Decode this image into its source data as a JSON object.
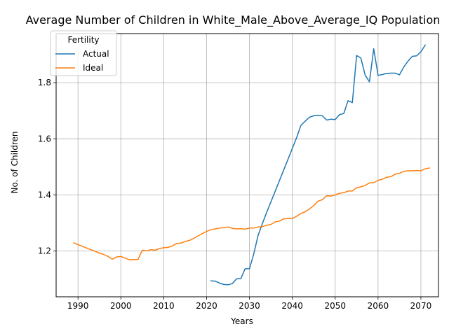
{
  "chart_data": {
    "type": "line",
    "title": "Average Number of Children in White_Male_Above_Average_IQ Population",
    "xlabel": "Years",
    "ylabel": "No. of Children",
    "xlim": [
      1984.9,
      2074.1
    ],
    "ylim": [
      1.037,
      1.975
    ],
    "grid": true,
    "legend_title": "Fertility",
    "legend_position": "top-left",
    "x_ticks": [
      1990,
      2000,
      2010,
      2020,
      2030,
      2040,
      2050,
      2060,
      2070
    ],
    "x_tick_labels": [
      "1990",
      "2000",
      "2010",
      "2020",
      "2030",
      "2040",
      "2050",
      "2060",
      "2070"
    ],
    "y_ticks": [
      1.2,
      1.4,
      1.6,
      1.8
    ],
    "y_tick_labels": [
      "1.2",
      "1.4",
      "1.6",
      "1.8"
    ],
    "series": [
      {
        "name": "Actual",
        "color": "#1f77b4",
        "points": [
          [
            2021,
            1.094
          ],
          [
            2022,
            1.093
          ],
          [
            2023,
            1.086
          ],
          [
            2024,
            1.081
          ],
          [
            2025,
            1.08
          ],
          [
            2026,
            1.084
          ],
          [
            2027,
            1.101
          ],
          [
            2028,
            1.102
          ],
          [
            2029,
            1.137
          ],
          [
            2030,
            1.137
          ],
          [
            2031,
            1.19
          ],
          [
            2032,
            1.255
          ],
          [
            2033,
            1.297
          ],
          [
            2034,
            1.337
          ],
          [
            2035,
            1.375
          ],
          [
            2036,
            1.413
          ],
          [
            2037,
            1.451
          ],
          [
            2038,
            1.489
          ],
          [
            2039,
            1.527
          ],
          [
            2040,
            1.566
          ],
          [
            2041,
            1.604
          ],
          [
            2042,
            1.648
          ],
          [
            2043,
            1.663
          ],
          [
            2044,
            1.677
          ],
          [
            2045,
            1.682
          ],
          [
            2046,
            1.684
          ],
          [
            2047,
            1.682
          ],
          [
            2048,
            1.667
          ],
          [
            2049,
            1.67
          ],
          [
            2050,
            1.669
          ],
          [
            2051,
            1.686
          ],
          [
            2052,
            1.69
          ],
          [
            2053,
            1.736
          ],
          [
            2054,
            1.729
          ],
          [
            2055,
            1.897
          ],
          [
            2056,
            1.888
          ],
          [
            2057,
            1.827
          ],
          [
            2058,
            1.803
          ],
          [
            2059,
            1.921
          ],
          [
            2060,
            1.826
          ],
          [
            2061,
            1.829
          ],
          [
            2062,
            1.833
          ],
          [
            2063,
            1.834
          ],
          [
            2064,
            1.834
          ],
          [
            2065,
            1.828
          ],
          [
            2066,
            1.856
          ],
          [
            2067,
            1.877
          ],
          [
            2068,
            1.894
          ],
          [
            2069,
            1.896
          ],
          [
            2070,
            1.91
          ],
          [
            2071,
            1.934
          ]
        ]
      },
      {
        "name": "Ideal",
        "color": "#ff7f0e",
        "points": [
          [
            1989,
            1.229
          ],
          [
            1990,
            1.223
          ],
          [
            1991,
            1.217
          ],
          [
            1992,
            1.211
          ],
          [
            1993,
            1.205
          ],
          [
            1994,
            1.199
          ],
          [
            1995,
            1.193
          ],
          [
            1996,
            1.188
          ],
          [
            1997,
            1.181
          ],
          [
            1998,
            1.171
          ],
          [
            1999,
            1.179
          ],
          [
            2000,
            1.181
          ],
          [
            2001,
            1.175
          ],
          [
            2002,
            1.169
          ],
          [
            2003,
            1.17
          ],
          [
            2004,
            1.17
          ],
          [
            2005,
            1.203
          ],
          [
            2006,
            1.201
          ],
          [
            2007,
            1.205
          ],
          [
            2008,
            1.203
          ],
          [
            2009,
            1.209
          ],
          [
            2010,
            1.212
          ],
          [
            2011,
            1.213
          ],
          [
            2012,
            1.218
          ],
          [
            2013,
            1.227
          ],
          [
            2014,
            1.228
          ],
          [
            2015,
            1.234
          ],
          [
            2016,
            1.238
          ],
          [
            2017,
            1.245
          ],
          [
            2018,
            1.254
          ],
          [
            2019,
            1.262
          ],
          [
            2020,
            1.27
          ],
          [
            2021,
            1.276
          ],
          [
            2022,
            1.279
          ],
          [
            2023,
            1.282
          ],
          [
            2024,
            1.283
          ],
          [
            2025,
            1.286
          ],
          [
            2026,
            1.281
          ],
          [
            2027,
            1.279
          ],
          [
            2028,
            1.28
          ],
          [
            2029,
            1.278
          ],
          [
            2030,
            1.282
          ],
          [
            2031,
            1.282
          ],
          [
            2032,
            1.286
          ],
          [
            2033,
            1.287
          ],
          [
            2034,
            1.292
          ],
          [
            2035,
            1.295
          ],
          [
            2036,
            1.304
          ],
          [
            2037,
            1.307
          ],
          [
            2038,
            1.315
          ],
          [
            2039,
            1.316
          ],
          [
            2040,
            1.316
          ],
          [
            2041,
            1.324
          ],
          [
            2042,
            1.334
          ],
          [
            2043,
            1.34
          ],
          [
            2044,
            1.35
          ],
          [
            2045,
            1.362
          ],
          [
            2046,
            1.378
          ],
          [
            2047,
            1.383
          ],
          [
            2048,
            1.397
          ],
          [
            2049,
            1.396
          ],
          [
            2050,
            1.4
          ],
          [
            2051,
            1.406
          ],
          [
            2052,
            1.408
          ],
          [
            2053,
            1.414
          ],
          [
            2054,
            1.414
          ],
          [
            2055,
            1.426
          ],
          [
            2056,
            1.429
          ],
          [
            2057,
            1.434
          ],
          [
            2058,
            1.443
          ],
          [
            2059,
            1.444
          ],
          [
            2060,
            1.452
          ],
          [
            2061,
            1.456
          ],
          [
            2062,
            1.463
          ],
          [
            2063,
            1.465
          ],
          [
            2064,
            1.474
          ],
          [
            2065,
            1.477
          ],
          [
            2066,
            1.484
          ],
          [
            2067,
            1.486
          ],
          [
            2068,
            1.486
          ],
          [
            2069,
            1.487
          ],
          [
            2070,
            1.486
          ],
          [
            2071,
            1.493
          ],
          [
            2072,
            1.496
          ]
        ]
      }
    ]
  }
}
